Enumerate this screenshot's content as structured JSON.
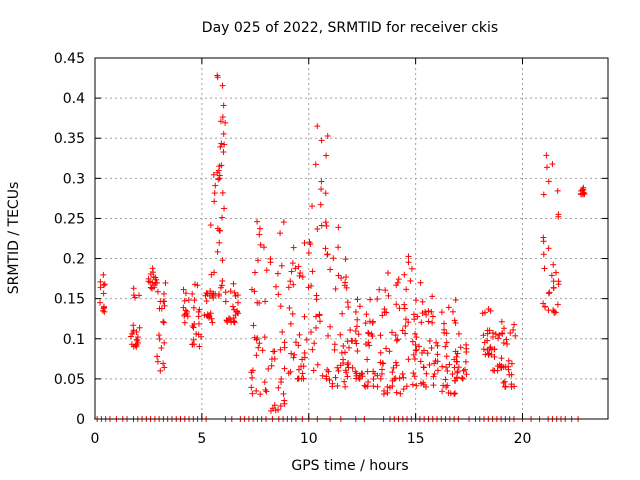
{
  "chart_data": {
    "type": "scatter",
    "title": "Day 025 of 2022, SRMTID for receiver ckis",
    "xlabel": "GPS time / hours",
    "ylabel": "SRMTID / TECUs",
    "xlim": [
      0,
      24
    ],
    "ylim": [
      0,
      0.45
    ],
    "xticks": [
      0,
      5,
      10,
      15,
      20
    ],
    "yticks": [
      0,
      0.05,
      0.1,
      0.15,
      0.2,
      0.25,
      0.3,
      0.35,
      0.4,
      0.45
    ],
    "ytick_labels": [
      "0",
      "0.05",
      "0.1",
      "0.15",
      "0.2",
      "0.25",
      "0.3",
      "0.35",
      "0.4",
      "0.45"
    ],
    "xtick_labels": [
      "0",
      "5",
      "10",
      "15",
      "20"
    ],
    "grid": true,
    "marker": "+",
    "color": "#ff0000",
    "clusters": [
      {
        "x": [
          0.2,
          0.5
        ],
        "y": [
          0.13,
          0.18
        ]
      },
      {
        "x": [
          1.6,
          2.1
        ],
        "y": [
          0.09,
          0.17
        ]
      },
      {
        "x": [
          2.5,
          2.9
        ],
        "y": [
          0.16,
          0.19
        ]
      },
      {
        "x": [
          2.9,
          3.4
        ],
        "y": [
          0.06,
          0.17
        ]
      },
      {
        "x": [
          4.1,
          4.4
        ],
        "y": [
          0.12,
          0.17
        ]
      },
      {
        "x": [
          4.5,
          5.0
        ],
        "y": [
          0.09,
          0.17
        ]
      },
      {
        "x": [
          5.1,
          5.5
        ],
        "y": [
          0.12,
          0.16
        ]
      },
      {
        "x": [
          5.4,
          6.1
        ],
        "y": [
          0.15,
          0.33
        ]
      },
      {
        "x": [
          5.7,
          6.1
        ],
        "y": [
          0.3,
          0.43
        ]
      },
      {
        "x": [
          6.1,
          6.7
        ],
        "y": [
          0.12,
          0.17
        ]
      },
      {
        "x": [
          7.3,
          8.1
        ],
        "y": [
          0.03,
          0.26
        ]
      },
      {
        "x": [
          8.1,
          8.9
        ],
        "y": [
          0.01,
          0.26
        ]
      },
      {
        "x": [
          9.0,
          9.9
        ],
        "y": [
          0.05,
          0.22
        ]
      },
      {
        "x": [
          9.9,
          10.9
        ],
        "y": [
          0.05,
          0.37
        ]
      },
      {
        "x": [
          10.9,
          11.8
        ],
        "y": [
          0.04,
          0.25
        ]
      },
      {
        "x": [
          11.8,
          12.6
        ],
        "y": [
          0.05,
          0.16
        ]
      },
      {
        "x": [
          12.6,
          13.5
        ],
        "y": [
          0.04,
          0.17
        ]
      },
      {
        "x": [
          13.5,
          14.5
        ],
        "y": [
          0.03,
          0.19
        ]
      },
      {
        "x": [
          14.5,
          15.3
        ],
        "y": [
          0.04,
          0.21
        ]
      },
      {
        "x": [
          15.3,
          16.1
        ],
        "y": [
          0.04,
          0.16
        ]
      },
      {
        "x": [
          16.1,
          16.9
        ],
        "y": [
          0.03,
          0.16
        ]
      },
      {
        "x": [
          16.9,
          17.4
        ],
        "y": [
          0.05,
          0.11
        ]
      },
      {
        "x": [
          18.1,
          18.6
        ],
        "y": [
          0.08,
          0.14
        ]
      },
      {
        "x": [
          18.6,
          19.1
        ],
        "y": [
          0.06,
          0.13
        ]
      },
      {
        "x": [
          19.1,
          19.7
        ],
        "y": [
          0.04,
          0.12
        ]
      },
      {
        "x": [
          20.9,
          21.7
        ],
        "y": [
          0.13,
          0.33
        ]
      },
      {
        "x": [
          22.6,
          22.9
        ],
        "y": [
          0.28,
          0.29
        ]
      }
    ],
    "zero_points_x": [
      0.1,
      0.3,
      0.5,
      0.7,
      1.0,
      1.3,
      1.5,
      1.8,
      2.0,
      2.2,
      2.4,
      2.6,
      2.8,
      3.0,
      3.2,
      3.4,
      3.6,
      3.8,
      4.0,
      4.2,
      4.4,
      4.6,
      4.8,
      5.0,
      5.2,
      6.1,
      6.4,
      6.8,
      7.0,
      7.2,
      7.4,
      7.6,
      7.8,
      8.0,
      8.3,
      8.6,
      8.8,
      9.0,
      9.2,
      9.4,
      9.7,
      10.0,
      10.4,
      11.0,
      11.5,
      12.2,
      12.6,
      13.5,
      13.8,
      14.0,
      14.2,
      14.4,
      14.6,
      14.8,
      15.0,
      15.2,
      15.4,
      15.6,
      15.8,
      16.0,
      16.2,
      16.4,
      16.6,
      16.8,
      17.0,
      17.5,
      17.8,
      18.0,
      18.2,
      18.4,
      18.6,
      18.8,
      19.0,
      19.2,
      19.4,
      19.6,
      20.0,
      20.4,
      20.8,
      21.2,
      21.4,
      21.6,
      21.8,
      22.0,
      22.3,
      22.6
    ]
  }
}
